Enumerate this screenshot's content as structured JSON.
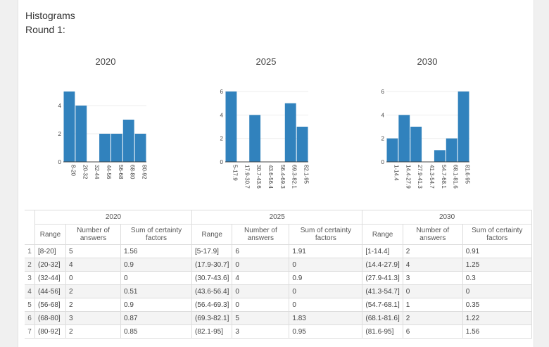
{
  "heading": "Histograms",
  "round": "Round 1:",
  "colors": {
    "bar": "#3182bd"
  },
  "chart_data": [
    {
      "type": "bar",
      "title": "2020",
      "categories": [
        "8-20",
        "20-32",
        "32-44",
        "44-56",
        "56-68",
        "68-80",
        "80-92"
      ],
      "values": [
        5,
        4,
        0,
        2,
        2,
        3,
        2
      ],
      "yticks": [
        0,
        2,
        4
      ],
      "ylim": [
        0,
        5
      ]
    },
    {
      "type": "bar",
      "title": "2025",
      "categories": [
        "5-17.9",
        "17.9-30.7",
        "30.7-43.6",
        "43.6-56.4",
        "56.4-69.3",
        "69.3-82.1",
        "82.1-95"
      ],
      "values": [
        6,
        0,
        4,
        0,
        0,
        5,
        3
      ],
      "yticks": [
        0,
        2,
        4,
        6
      ],
      "ylim": [
        0,
        6
      ]
    },
    {
      "type": "bar",
      "title": "2030",
      "categories": [
        "1-14.4",
        "14.4-27.9",
        "27.9-41.3",
        "41.3-54.7",
        "54.7-68.1",
        "68.1-81.6",
        "81.6-95"
      ],
      "values": [
        2,
        4,
        3,
        0,
        1,
        2,
        6
      ],
      "yticks": [
        0,
        2,
        4,
        6
      ],
      "ylim": [
        0,
        6
      ]
    }
  ],
  "table": {
    "groups": [
      "2020",
      "2025",
      "2030"
    ],
    "columns": [
      "Range",
      "Number of answers",
      "Sum of certainty factors"
    ],
    "rows": [
      {
        "i": "1",
        "c": [
          "[8-20]",
          "5",
          "1.56",
          "[5-17.9]",
          "6",
          "1.91",
          "[1-14.4]",
          "2",
          "0.91"
        ]
      },
      {
        "i": "2",
        "c": [
          "(20-32]",
          "4",
          "0.9",
          "(17.9-30.7]",
          "0",
          "0",
          "(14.4-27.9]",
          "4",
          "1.25"
        ]
      },
      {
        "i": "3",
        "c": [
          "(32-44]",
          "0",
          "0",
          "(30.7-43.6]",
          "4",
          "0.9",
          "(27.9-41.3]",
          "3",
          "0.3"
        ]
      },
      {
        "i": "4",
        "c": [
          "(44-56]",
          "2",
          "0.51",
          "(43.6-56.4]",
          "0",
          "0",
          "(41.3-54.7]",
          "0",
          "0"
        ]
      },
      {
        "i": "5",
        "c": [
          "(56-68]",
          "2",
          "0.9",
          "(56.4-69.3]",
          "0",
          "0",
          "(54.7-68.1]",
          "1",
          "0.35"
        ]
      },
      {
        "i": "6",
        "c": [
          "(68-80]",
          "3",
          "0.87",
          "(69.3-82.1]",
          "5",
          "1.83",
          "(68.1-81.6]",
          "2",
          "1.22"
        ]
      },
      {
        "i": "7",
        "c": [
          "(80-92]",
          "2",
          "0.85",
          "(82.1-95]",
          "3",
          "0.95",
          "(81.6-95]",
          "6",
          "1.56"
        ]
      }
    ]
  }
}
